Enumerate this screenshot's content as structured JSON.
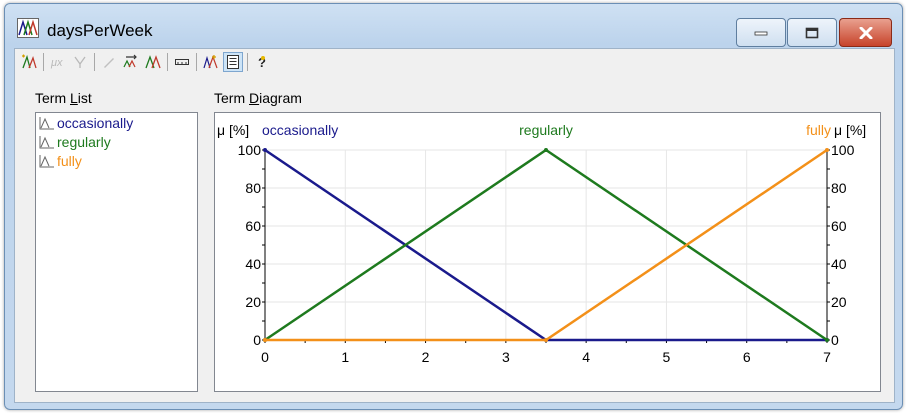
{
  "window": {
    "title": "daysPerWeek"
  },
  "toolbar": {
    "buttons": [
      "new-term",
      "mu-x",
      "filter",
      "edit",
      "shift-terms",
      "distribute-terms",
      "range",
      "terms-wizard",
      "properties",
      "help"
    ]
  },
  "term_list": {
    "label_prefix": "Term ",
    "label_access": "L",
    "label_suffix": "ist",
    "items": [
      {
        "name": "occasionally",
        "color": "#1a1a8c"
      },
      {
        "name": "regularly",
        "color": "#1e7a1e"
      },
      {
        "name": "fully",
        "color": "#f39019"
      }
    ]
  },
  "term_diagram": {
    "label_prefix": "Term ",
    "label_access": "D",
    "label_suffix": "iagram"
  },
  "chart_data": {
    "type": "line",
    "left_ylabel": "μ [%]",
    "right_ylabel": "μ [%]",
    "xlim": [
      0,
      7
    ],
    "ylim": [
      0,
      100
    ],
    "x_ticks": [
      "0",
      "1",
      "2",
      "3",
      "4",
      "5",
      "6",
      "7"
    ],
    "y_ticks": [
      "0",
      "20",
      "40",
      "60",
      "80",
      "100"
    ],
    "series": [
      {
        "name": "occasionally",
        "color": "#1a1a8c",
        "points": [
          [
            0,
            100
          ],
          [
            3.5,
            0
          ],
          [
            7,
            0
          ]
        ]
      },
      {
        "name": "regularly",
        "color": "#1e7a1e",
        "points": [
          [
            0,
            0
          ],
          [
            3.5,
            100
          ],
          [
            7,
            0
          ]
        ]
      },
      {
        "name": "fully",
        "color": "#f39019",
        "points": [
          [
            0,
            0
          ],
          [
            3.5,
            0
          ],
          [
            7,
            100
          ]
        ]
      }
    ]
  }
}
